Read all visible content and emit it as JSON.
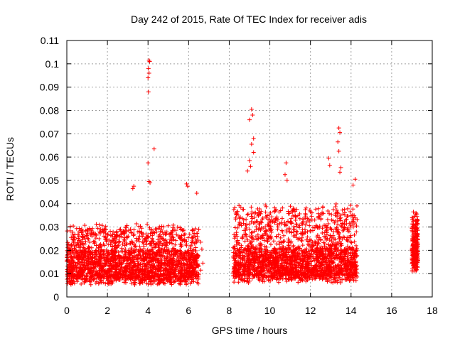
{
  "chart_data": {
    "type": "scatter",
    "title": "Day 242 of 2015, Rate Of TEC Index for receiver adis",
    "xlabel": "GPS time / hours",
    "ylabel": "ROTI / TECUs",
    "xlim": [
      0,
      18
    ],
    "ylim": [
      0,
      0.11
    ],
    "xticks": [
      "0",
      "2",
      "4",
      "6",
      "8",
      "10",
      "12",
      "14",
      "16",
      "18"
    ],
    "yticks": [
      "0",
      "0.01",
      "0.02",
      "0.03",
      "0.04",
      "0.05",
      "0.06",
      "0.07",
      "0.08",
      "0.09",
      "0.1",
      "0.11"
    ],
    "grid": true,
    "marker": "+",
    "color": "#ff0000",
    "segments": [
      {
        "x_start": 0.0,
        "x_end": 6.5,
        "y_low": 0.004,
        "y_typical_high": 0.03
      },
      {
        "x_start": 8.2,
        "x_end": 14.3,
        "y_low": 0.005,
        "y_typical_high": 0.038
      },
      {
        "x_start": 17.0,
        "x_end": 17.3,
        "y_low": 0.01,
        "y_typical_high": 0.035
      }
    ],
    "notable_points": [
      {
        "x": 4.05,
        "y": 0.1015
      },
      {
        "x": 4.08,
        "y": 0.101
      },
      {
        "x": 4.02,
        "y": 0.098
      },
      {
        "x": 4.05,
        "y": 0.096
      },
      {
        "x": 4.0,
        "y": 0.094
      },
      {
        "x": 4.02,
        "y": 0.088
      },
      {
        "x": 4.3,
        "y": 0.0635
      },
      {
        "x": 4.0,
        "y": 0.0575
      },
      {
        "x": 4.05,
        "y": 0.0495
      },
      {
        "x": 4.1,
        "y": 0.049
      },
      {
        "x": 3.3,
        "y": 0.0475
      },
      {
        "x": 3.25,
        "y": 0.0465
      },
      {
        "x": 5.9,
        "y": 0.0485
      },
      {
        "x": 5.95,
        "y": 0.0475
      },
      {
        "x": 6.4,
        "y": 0.0445
      },
      {
        "x": 9.1,
        "y": 0.0805
      },
      {
        "x": 9.15,
        "y": 0.078
      },
      {
        "x": 9.0,
        "y": 0.076
      },
      {
        "x": 9.2,
        "y": 0.068
      },
      {
        "x": 9.1,
        "y": 0.0655
      },
      {
        "x": 9.2,
        "y": 0.062
      },
      {
        "x": 9.0,
        "y": 0.0585
      },
      {
        "x": 8.9,
        "y": 0.054
      },
      {
        "x": 9.05,
        "y": 0.056
      },
      {
        "x": 10.8,
        "y": 0.0575
      },
      {
        "x": 10.75,
        "y": 0.0525
      },
      {
        "x": 10.85,
        "y": 0.05
      },
      {
        "x": 12.9,
        "y": 0.0595
      },
      {
        "x": 12.95,
        "y": 0.0565
      },
      {
        "x": 13.4,
        "y": 0.0725
      },
      {
        "x": 13.45,
        "y": 0.0705
      },
      {
        "x": 13.35,
        "y": 0.0665
      },
      {
        "x": 13.4,
        "y": 0.0625
      },
      {
        "x": 13.5,
        "y": 0.0555
      },
      {
        "x": 13.45,
        "y": 0.0535
      },
      {
        "x": 14.2,
        "y": 0.0505
      },
      {
        "x": 14.1,
        "y": 0.048
      },
      {
        "x": 6.6,
        "y": 0.0235
      },
      {
        "x": 6.65,
        "y": 0.0205
      },
      {
        "x": 6.7,
        "y": 0.0145
      },
      {
        "x": 6.6,
        "y": 0.0115
      },
      {
        "x": 17.2,
        "y": 0.036
      },
      {
        "x": 17.25,
        "y": 0.0345
      }
    ]
  }
}
